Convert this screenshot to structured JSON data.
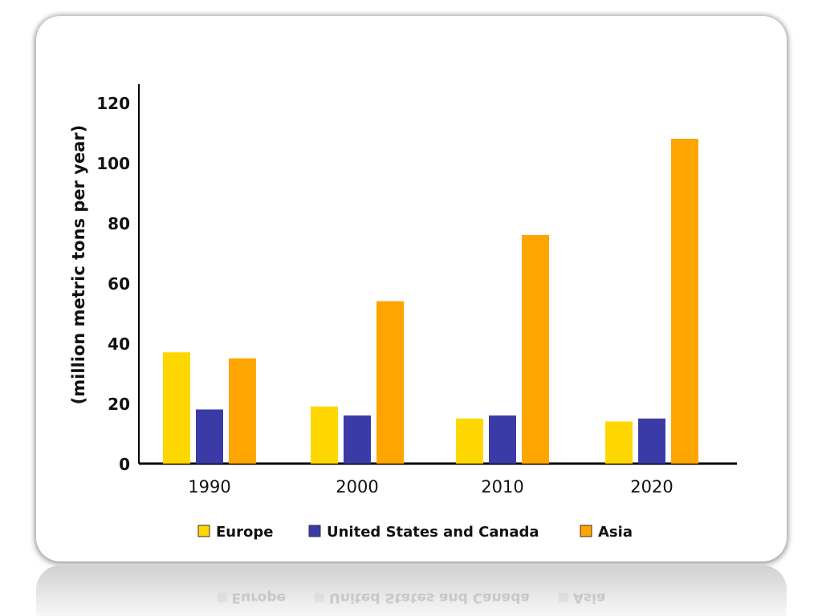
{
  "chart_data": {
    "type": "bar",
    "title": "",
    "ylabel": "(million metric tons per year)",
    "xlabel": "",
    "categories": [
      "1990",
      "2000",
      "2010",
      "2020"
    ],
    "ylim": [
      0,
      120
    ],
    "yticks": [
      "0",
      "20",
      "40",
      "60",
      "80",
      "100",
      "120"
    ],
    "series": [
      {
        "name": "Europe",
        "color": "#FFD700",
        "values": [
          37,
          19,
          15,
          14
        ]
      },
      {
        "name": "United States and Canada",
        "color": "#3B3BA8",
        "values": [
          18,
          16,
          16,
          15
        ]
      },
      {
        "name": "Asia",
        "color": "#FFA500",
        "values": [
          35,
          54,
          76,
          108
        ]
      }
    ],
    "grid": false,
    "legend_position": "bottom"
  }
}
